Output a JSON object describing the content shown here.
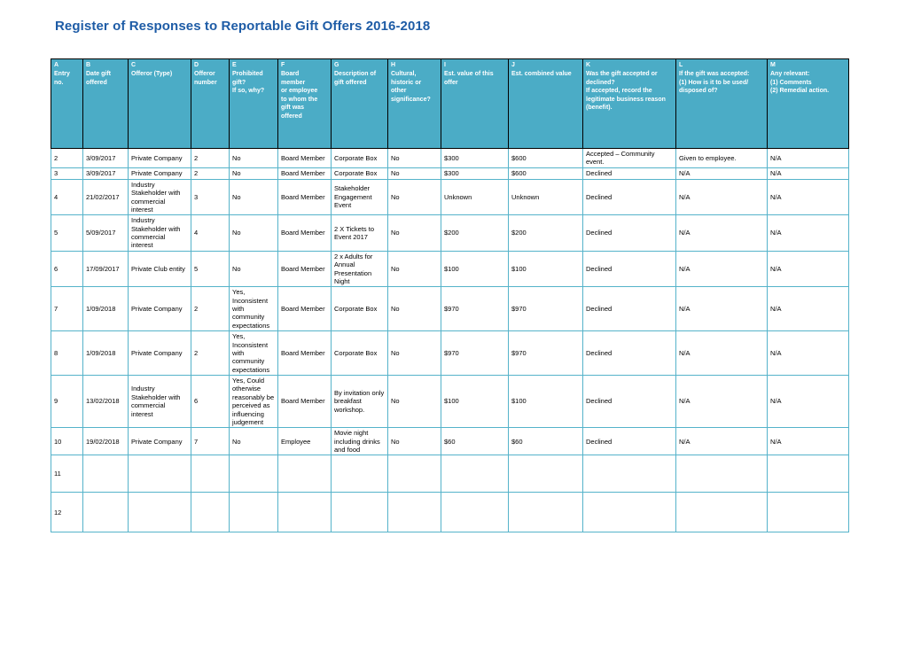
{
  "page_title": "Register of Responses to Reportable Gift Offers 2016-2018",
  "colors": {
    "title_text": "#1e5ca6",
    "header_background": "#4bacc6",
    "header_text": "#ffffff",
    "header_border": "#000000",
    "body_border": "#55b3ca"
  },
  "table": {
    "columns": [
      {
        "letter": "A",
        "label": "Entry\nno."
      },
      {
        "letter": "B",
        "label": "Date gift\noffered"
      },
      {
        "letter": "C",
        "label": "Offeror (Type)"
      },
      {
        "letter": "D",
        "label": "Offeror\nnumber"
      },
      {
        "letter": "E",
        "label": "Prohibited\ngift?\nIf so, why?"
      },
      {
        "letter": "F",
        "label": "Board\nmember\nor employee\nto whom the\ngift was\noffered"
      },
      {
        "letter": "G",
        "label": "Description of\ngift offered"
      },
      {
        "letter": "H",
        "label": "Cultural,\nhistoric or\nother\nsignificance?"
      },
      {
        "letter": "I",
        "label": "Est. value of this\noffer"
      },
      {
        "letter": "J",
        "label": "Est. combined value"
      },
      {
        "letter": "K",
        "label": "Was the gift accepted or\ndeclined?\nIf accepted, record the\nlegitimate business reason\n(benefit)."
      },
      {
        "letter": "L",
        "label": "If the gift was accepted:\n(1) How is it to be used/\ndisposed of?"
      },
      {
        "letter": "M",
        "label": "Any relevant:\n(1) Comments\n(2) Remedial action."
      }
    ],
    "rows": [
      [
        "2",
        "3/09/2017",
        "Private Company",
        "2",
        "No",
        "Board Member",
        "Corporate Box",
        "No",
        "$300",
        "$600",
        "Accepted – Community event.",
        "Given to employee.",
        "N/A"
      ],
      [
        "3",
        "3/09/2017",
        "Private Company",
        "2",
        "No",
        "Board Member",
        "Corporate Box",
        "No",
        "$300",
        "$600",
        "Declined",
        "N/A",
        "N/A"
      ],
      [
        "4",
        "21/02/2017",
        "Industry Stakeholder with commercial interest",
        "3",
        "No",
        "Board Member",
        "Stakeholder Engagement Event",
        "No",
        "Unknown",
        "Unknown",
        "Declined",
        "N/A",
        "N/A"
      ],
      [
        "5",
        "5/09/2017",
        "Industry Stakeholder with commercial interest",
        "4",
        "No",
        "Board Member",
        "2 X Tickets to Event 2017",
        "No",
        "$200",
        "$200",
        "Declined",
        "N/A",
        "N/A"
      ],
      [
        "6",
        "17/09/2017",
        "Private Club entity",
        "5",
        "No",
        "Board Member",
        "2 x Adults for Annual Presentation Night",
        "No",
        "$100",
        "$100",
        "Declined",
        "N/A",
        "N/A"
      ],
      [
        "7",
        "1/09/2018",
        "Private Company",
        "2",
        "Yes, Inconsistent with community expectations",
        "Board Member",
        "Corporate Box",
        "No",
        "$970",
        "$970",
        "Declined",
        "N/A",
        "N/A"
      ],
      [
        "8",
        "1/09/2018",
        "Private Company",
        "2",
        "Yes, Inconsistent with community expectations",
        "Board Member",
        "Corporate Box",
        "No",
        "$970",
        "$970",
        "Declined",
        "N/A",
        "N/A"
      ],
      [
        "9",
        "13/02/2018",
        "Industry Stakeholder with commercial interest",
        "6",
        "Yes, Could otherwise reasonably be perceived as influencing judgement",
        "Board Member",
        "By invitation only breakfast workshop.",
        "No",
        "$100",
        "$100",
        "Declined",
        "N/A",
        "N/A"
      ],
      [
        "10",
        "19/02/2018",
        "Private Company",
        "7",
        "No",
        "Employee",
        "Movie night including drinks and food",
        "No",
        "$60",
        "$60",
        "Declined",
        "N/A",
        "N/A"
      ],
      [
        "11",
        "",
        "",
        "",
        "",
        "",
        "",
        "",
        "",
        "",
        "",
        "",
        ""
      ],
      [
        "12",
        "",
        "",
        "",
        "",
        "",
        "",
        "",
        "",
        "",
        "",
        "",
        ""
      ]
    ]
  }
}
